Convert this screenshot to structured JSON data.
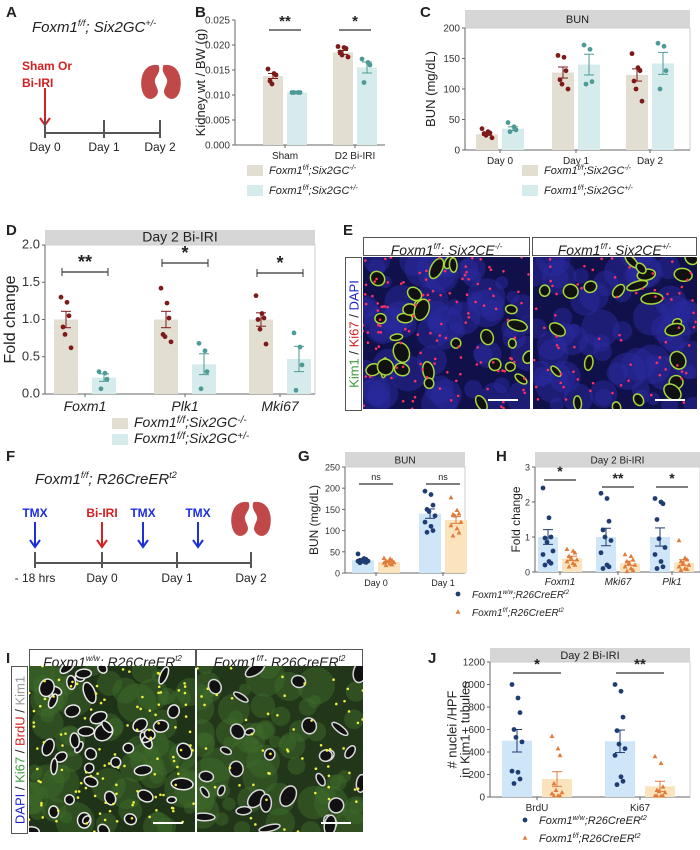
{
  "panel_letters": {
    "A": "A",
    "B": "B",
    "C": "C",
    "D": "D",
    "E": "E",
    "F": "F",
    "G": "G",
    "H": "H",
    "I": "I",
    "J": "J"
  },
  "panel_a": {
    "title": {
      "gene": "Foxm1",
      "gene_sup": "f/f",
      "sep": "; ",
      "driver": "Six2GC",
      "driver_sup": "+/-"
    },
    "event_lines": [
      "Sham Or",
      "Bi-IRI"
    ],
    "event_color": "#d42020",
    "timeline": [
      "Day 0",
      "Day 1",
      "Day 2"
    ],
    "end_icon": "kidney-icon"
  },
  "panel_e": {
    "headers": [
      {
        "gene": "Foxm1",
        "gene_sup": "f/f",
        "sep": "; ",
        "driver": "Six2CE",
        "driver_sup": "-/-"
      },
      {
        "gene": "Foxm1",
        "gene_sup": "f/f",
        "sep": "; ",
        "driver": "Six2CE",
        "driver_sup": "+/-"
      }
    ],
    "stain_label": [
      {
        "text": "Kim1",
        "color": "#3a9a3a"
      },
      {
        "text": " / ",
        "color": "#222222"
      },
      {
        "text": "Ki67",
        "color": "#d42020"
      },
      {
        "text": " / ",
        "color": "#222222"
      },
      {
        "text": "DAPI",
        "color": "#2020d0"
      }
    ]
  },
  "panel_f": {
    "title": {
      "gene": "Foxm1",
      "gene_sup": "f/f",
      "sep": "; ",
      "driver": "R26CreER",
      "driver_sup": "t2"
    },
    "events": [
      {
        "label": "TMX",
        "color": "#1c2fd8"
      },
      {
        "label": "Bi-IRI",
        "color": "#d42020"
      },
      {
        "label": "TMX",
        "color": "#1c2fd8"
      },
      {
        "label": "TMX",
        "color": "#1c2fd8"
      }
    ],
    "timeline": [
      "- 18 hrs",
      "Day 0",
      "Day 1",
      "Day 2"
    ],
    "end_icon": "kidney-icon"
  },
  "panel_i": {
    "headers": [
      {
        "gene": "Foxm1",
        "gene_sup": "w/w",
        "sep": "; ",
        "driver": "R26CreER",
        "driver_sup": "t2"
      },
      {
        "gene": "Foxm1",
        "gene_sup": "f/f",
        "sep": "; ",
        "driver": "R26CreER",
        "driver_sup": "t2"
      }
    ],
    "stain_label": [
      {
        "text": "DAPI",
        "color": "#2020d0"
      },
      {
        "text": " / ",
        "color": "#222222"
      },
      {
        "text": "Ki67",
        "color": "#3a9a3a"
      },
      {
        "text": " / ",
        "color": "#222222"
      },
      {
        "text": "BrdU",
        "color": "#d42020"
      },
      {
        "text": " / ",
        "color": "#222222"
      },
      {
        "text": "Kim1",
        "color": "#999999"
      }
    ]
  },
  "chart_data": [
    {
      "panel": "B",
      "type": "bar",
      "strip_title": "",
      "categories": [
        "Sham",
        "D2 Bi-IRI"
      ],
      "ylabel": [
        "Kidney wt / BW (g)"
      ],
      "ylim": [
        0,
        0.025
      ],
      "yticks": [
        0,
        0.005,
        0.01,
        0.015,
        0.02,
        0.025
      ],
      "ytick_labels": [
        "0.000",
        "0.005",
        "0.010",
        "0.015",
        "0.020",
        "0.025"
      ],
      "significance": [
        "**",
        "*"
      ],
      "series": [
        {
          "bar_color": "#e3ded2",
          "point_color": "#7d1a1a",
          "marker": "circle",
          "mean": [
            0.0138,
            0.0185
          ],
          "sem": [
            0.0005,
            0.0004
          ],
          "points": [
            [
              0.0152,
              0.0143,
              0.014,
              0.0128,
              0.0122
            ],
            [
              0.0197,
              0.0195,
              0.0193,
              0.0186,
              0.018,
              0.0176
            ]
          ]
        },
        {
          "bar_color": "#d6ecec",
          "point_color": "#4e9a96",
          "marker": "circle",
          "mean": [
            0.0105,
            0.0155
          ],
          "sem": [
            0.0001,
            0.0011
          ],
          "points": [
            [
              0.0105,
              0.0105,
              0.0105,
              0.0105
            ],
            [
              0.0172,
              0.0165,
              0.016,
              0.0125
            ]
          ]
        }
      ],
      "legend": [
        {
          "gene": "Foxm1",
          "gene_sup": "f/f",
          "mid": ";Six2GC",
          "sup": "-/-"
        },
        {
          "gene": "Foxm1",
          "gene_sup": "f/f",
          "mid": ";Six2GC",
          "sup": "+/-"
        }
      ]
    },
    {
      "panel": "C",
      "type": "bar",
      "strip_title": "BUN",
      "categories": [
        "Day 0",
        "Day 1",
        "Day 2"
      ],
      "ylabel": [
        "BUN (mg/dL)"
      ],
      "ylim": [
        0,
        200
      ],
      "yticks": [
        0,
        50,
        100,
        150,
        200
      ],
      "ytick_labels": [
        "0",
        "50",
        "100",
        "150",
        "200"
      ],
      "significance": [],
      "series": [
        {
          "bar_color": "#e3ded2",
          "point_color": "#7d1a1a",
          "marker": "circle",
          "mean": [
            26,
            127,
            123
          ],
          "sem": [
            2,
            9,
            10
          ],
          "points": [
            [
              35,
              30,
              28,
              27,
              24,
              20
            ],
            [
              155,
              152,
              130,
              115,
              108,
              100
            ],
            [
              158,
              135,
              130,
              113,
              100,
              80
            ]
          ]
        },
        {
          "bar_color": "#d6ecec",
          "point_color": "#4e9a96",
          "marker": "circle",
          "mean": [
            35,
            140,
            142
          ],
          "sem": [
            3,
            17,
            18
          ],
          "points": [
            [
              45,
              38,
              33,
              30
            ],
            [
              172,
              165,
              112,
              108
            ],
            [
              175,
              170,
              130,
              100
            ]
          ]
        }
      ],
      "legend": [
        {
          "gene": "Foxm1",
          "gene_sup": "f/f",
          "mid": ";Six2GC",
          "sup": "-/-"
        },
        {
          "gene": "Foxm1",
          "gene_sup": "f/f",
          "mid": ";Six2GC",
          "sup": "+/-"
        }
      ]
    },
    {
      "panel": "D",
      "type": "bar",
      "strip_title": "Day 2 Bi-IRI",
      "categories": [
        "Foxm1",
        "Plk1",
        "Mki67"
      ],
      "ylabel": [
        "Fold change"
      ],
      "ylim": [
        0,
        2
      ],
      "yticks": [
        0,
        0.5,
        1,
        1.5,
        2
      ],
      "ytick_labels": [
        "0.0",
        "0.5",
        "1.0",
        "1.5",
        "2.0"
      ],
      "significance": [
        "**",
        "*",
        "*"
      ],
      "series": [
        {
          "bar_color": "#e3ded2",
          "point_color": "#7d1a1a",
          "marker": "circle",
          "mean": [
            1.0,
            1.0,
            1.0
          ],
          "sem": [
            0.11,
            0.11,
            0.09
          ],
          "points": [
            [
              1.3,
              1.23,
              1.05,
              0.9,
              0.8,
              0.62
            ],
            [
              1.42,
              1.22,
              1.02,
              0.8,
              0.77,
              0.7
            ],
            [
              1.32,
              1.08,
              1.02,
              1.0,
              0.87,
              0.67
            ]
          ]
        },
        {
          "bar_color": "#d6ecec",
          "point_color": "#4e9a96",
          "marker": "circle",
          "mean": [
            0.22,
            0.4,
            0.47
          ],
          "sem": [
            0.05,
            0.14,
            0.17
          ],
          "points": [
            [
              0.3,
              0.28,
              0.2,
              0.07
            ],
            [
              0.68,
              0.58,
              0.3,
              0.07
            ],
            [
              0.82,
              0.63,
              0.39,
              0.05
            ]
          ]
        }
      ],
      "legend": [
        {
          "gene": "Foxm1",
          "gene_sup": "f/f",
          "mid": ";Six2GC",
          "sup": "-/-"
        },
        {
          "gene": "Foxm1",
          "gene_sup": "f/f",
          "mid": ";Six2GC",
          "sup": "+/-"
        }
      ]
    },
    {
      "panel": "G",
      "type": "bar",
      "strip_title": "BUN",
      "categories": [
        "Day 0",
        "Day 1"
      ],
      "ylabel": [
        "BUN (mg/dL)"
      ],
      "ylim": [
        0,
        250
      ],
      "yticks": [
        0,
        50,
        100,
        150,
        200,
        250
      ],
      "ytick_labels": [
        "0",
        "50",
        "100",
        "150",
        "200",
        "250"
      ],
      "significance": [
        "ns",
        "ns"
      ],
      "series": [
        {
          "bar_color": "#cfe5f8",
          "point_color": "#1f3d73",
          "marker": "circle",
          "mean": [
            30,
            140
          ],
          "sem": [
            2,
            11
          ],
          "points": [
            [
              45,
              34,
              32,
              30,
              30,
              28,
              28,
              27,
              25,
              24
            ],
            [
              193,
              185,
              160,
              150,
              145,
              135,
              120,
              110,
              100,
              96
            ]
          ]
        },
        {
          "bar_color": "#fbe3bd",
          "point_color": "#e07b39",
          "marker": "triangle",
          "mean": [
            26,
            125
          ],
          "sem": [
            2,
            8
          ],
          "points": [
            [
              35,
              33,
              30,
              28,
              27,
              25,
              24,
              22,
              20,
              18
            ],
            [
              178,
              148,
              140,
              138,
              135,
              120,
              112,
              105,
              95,
              88
            ]
          ]
        }
      ],
      "legend": []
    },
    {
      "panel": "H",
      "type": "bar",
      "strip_title": "Day 2 Bi-IRI",
      "categories": [
        "Foxm1",
        "Mki67",
        "Plk1"
      ],
      "ylabel": [
        "Fold change"
      ],
      "ylim": [
        0,
        3
      ],
      "yticks": [
        0,
        1,
        2,
        3
      ],
      "ytick_labels": [
        "0",
        "1",
        "2",
        "3"
      ],
      "significance": [
        "*",
        "**",
        "*"
      ],
      "series": [
        {
          "bar_color": "#cfe5f8",
          "point_color": "#1f3d73",
          "marker": "circle",
          "mean": [
            1.0,
            1.0,
            1.0
          ],
          "sem": [
            0.21,
            0.25,
            0.26
          ],
          "points": [
            [
              2.4,
              1.55,
              1.0,
              0.97,
              0.85,
              0.6,
              0.5,
              0.3,
              0.25,
              0.2
            ],
            [
              2.25,
              2.1,
              1.45,
              1.2,
              1.0,
              0.9,
              0.55,
              0.2,
              0.15,
              0.1
            ],
            [
              2.1,
              2.0,
              1.95,
              1.5,
              0.95,
              0.7,
              0.5,
              0.3,
              0.15,
              0.1
            ]
          ]
        },
        {
          "bar_color": "#fbe3bd",
          "point_color": "#e07b39",
          "marker": "triangle",
          "mean": [
            0.39,
            0.25,
            0.27
          ],
          "sem": [
            0.06,
            0.06,
            0.08
          ],
          "points": [
            [
              0.65,
              0.6,
              0.55,
              0.45,
              0.4,
              0.35,
              0.3,
              0.25,
              0.2,
              0.15
            ],
            [
              0.5,
              0.45,
              0.35,
              0.3,
              0.25,
              0.2,
              0.15,
              0.1,
              0.05,
              0.02
            ],
            [
              0.9,
              0.4,
              0.35,
              0.3,
              0.25,
              0.2,
              0.15,
              0.1,
              0.08,
              0.05
            ]
          ]
        }
      ],
      "legend": [
        {
          "gene": "Foxm1",
          "gene_sup": "w/w",
          "mid": ";R26CreER",
          "sup": "t2"
        },
        {
          "gene": "Foxm1",
          "gene_sup": "f/f",
          "mid": ";R26CreER",
          "sup": "t2"
        }
      ]
    },
    {
      "panel": "J",
      "type": "bar",
      "strip_title": "Day 2 Bi-IRI",
      "categories": [
        "BrdU",
        "Ki67"
      ],
      "ylabel": [
        "# nuclei /HPF",
        "in Kim1+ tubules"
      ],
      "ylim": [
        0,
        1200
      ],
      "yticks": [
        0,
        200,
        400,
        600,
        800,
        1000,
        1200
      ],
      "ytick_labels": [
        "0",
        "200",
        "400",
        "600",
        "800",
        "1000",
        "1200"
      ],
      "significance": [
        "*",
        "**"
      ],
      "series": [
        {
          "bar_color": "#cfe5f8",
          "point_color": "#1f3d73",
          "marker": "circle",
          "mean": [
            500,
            495
          ],
          "sem": [
            100,
            100
          ],
          "points": [
            [
              1000,
              880,
              750,
              600,
              530,
              490,
              230,
              220,
              160,
              120
            ],
            [
              1000,
              940,
              710,
              590,
              470,
              430,
              370,
              180,
              140,
              110
            ]
          ]
        },
        {
          "bar_color": "#fbe3bd",
          "point_color": "#e07b39",
          "marker": "triangle",
          "mean": [
            160,
            95
          ],
          "sem": [
            65,
            45
          ],
          "points": [
            [
              540,
              430,
              370,
              120,
              60,
              40,
              30,
              10,
              10,
              10
            ],
            [
              360,
              300,
              90,
              60,
              50,
              40,
              10,
              10,
              10,
              10
            ]
          ]
        }
      ],
      "legend": [
        {
          "gene": "Foxm1",
          "gene_sup": "w/w",
          "mid": ";R26CreER",
          "sup": "t2"
        },
        {
          "gene": "Foxm1",
          "gene_sup": "f/f",
          "mid": ";R26CreER",
          "sup": "t2"
        }
      ]
    }
  ]
}
